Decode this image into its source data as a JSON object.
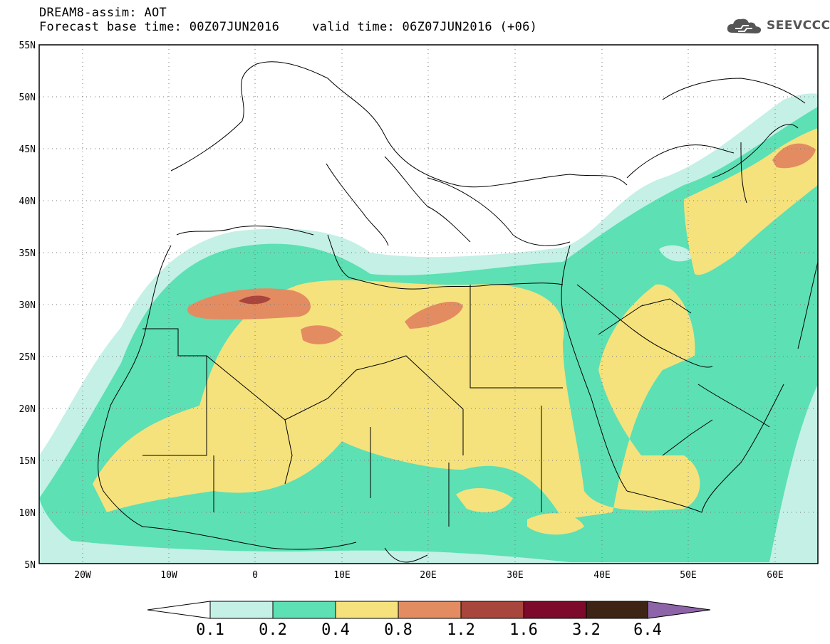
{
  "header": {
    "title": "DREAM8-assim: AOT",
    "base_time": "Forecast base time: 00Z07JUN2016",
    "valid_time": "valid time: 06Z07JUN2016 (+06)"
  },
  "logo": {
    "text": "SEEVCCC",
    "icon": "cloud-icon"
  },
  "map": {
    "variable": "AOT",
    "lon_range": [
      -25,
      65
    ],
    "lat_range": [
      5,
      55
    ],
    "lat_ticks": [
      "55N",
      "50N",
      "45N",
      "40N",
      "35N",
      "30N",
      "25N",
      "20N",
      "15N",
      "10N",
      "5N"
    ],
    "lon_ticks": [
      "20W",
      "10W",
      "0",
      "10E",
      "20E",
      "30E",
      "40E",
      "50E",
      "60E"
    ],
    "grid": "dotted"
  },
  "colorbar": {
    "levels": [
      "0.1",
      "0.2",
      "0.4",
      "0.8",
      "1.2",
      "1.6",
      "3.2",
      "6.4"
    ],
    "colors": [
      "#ffffff",
      "#c4f0e6",
      "#5ce0b4",
      "#f5e27c",
      "#e38c62",
      "#a8453c",
      "#7d0a2a",
      "#3d2414",
      "#8d64a8"
    ]
  }
}
